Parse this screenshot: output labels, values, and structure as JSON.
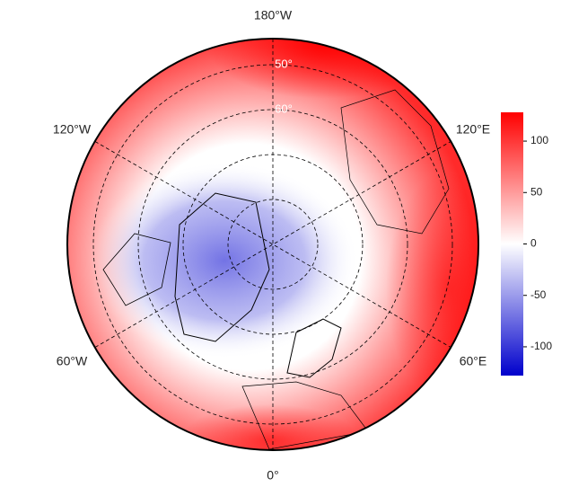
{
  "map": {
    "longitude_labels": [
      "180°W",
      "120°W",
      "60°W",
      "0°",
      "60°E",
      "120°E"
    ],
    "latitude_labels": [
      "50°",
      "60°"
    ]
  },
  "colorbar": {
    "lim": [
      -128,
      128
    ],
    "ticks": [
      100,
      50,
      0,
      -50,
      -100
    ],
    "colors": [
      "#0000cc",
      "#ffffff",
      "#ff0000"
    ]
  }
}
